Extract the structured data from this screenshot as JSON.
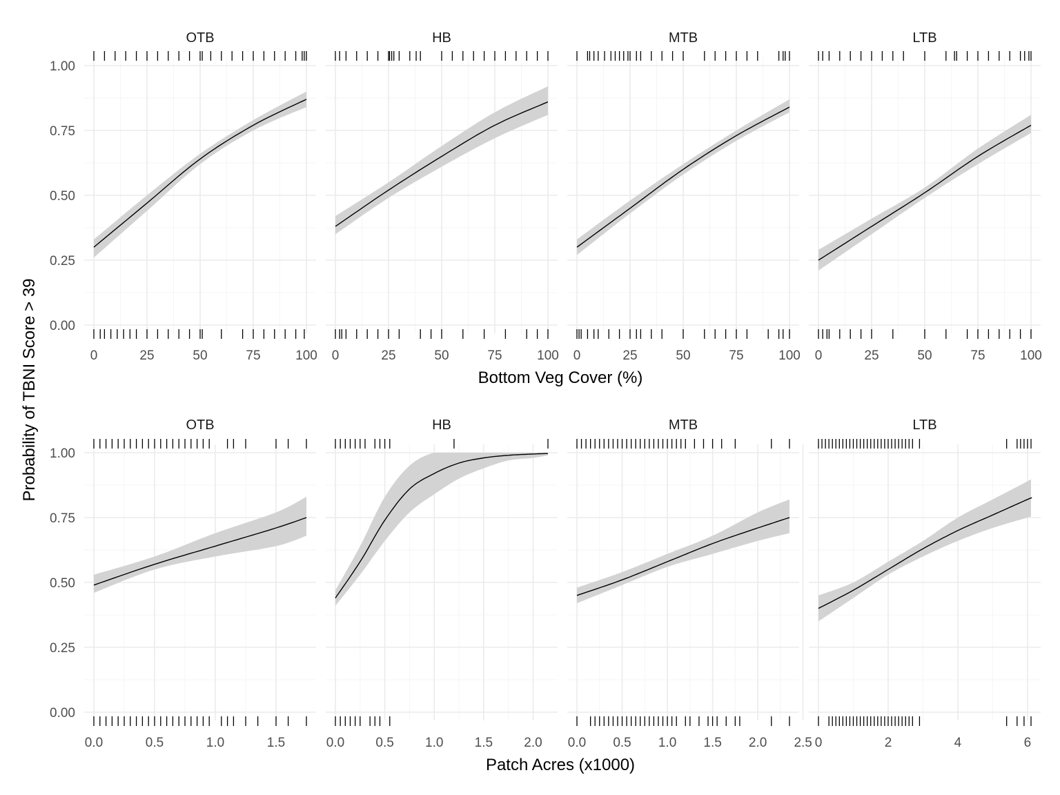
{
  "chart_data": {
    "type": "line",
    "ylabel": "Probability of TBNI Score > 39",
    "y_ticks": [
      "0.00",
      "0.25",
      "0.50",
      "0.75",
      "1.00"
    ],
    "ylim": [
      0,
      1
    ],
    "grid": true,
    "colors": {
      "line": "#000000",
      "ribbon": "#d3d3d3",
      "grid": "#ebebeb"
    },
    "rows": [
      {
        "xlabel": "Bottom Veg Cover (%)",
        "x_ticks": [
          "0",
          "25",
          "50",
          "75",
          "100"
        ],
        "x_tick_values": [
          0,
          25,
          50,
          75,
          100
        ],
        "xlim": [
          0,
          100
        ],
        "panels": [
          {
            "name": "OTB",
            "x": [
              0,
              25,
              50,
              75,
              100
            ],
            "y": [
              0.3,
              0.47,
              0.64,
              0.77,
              0.87
            ],
            "lower": [
              0.26,
              0.44,
              0.62,
              0.75,
              0.84
            ],
            "upper": [
              0.33,
              0.5,
              0.66,
              0.79,
              0.9
            ],
            "rug_top": [
              0,
              5,
              10,
              15,
              20,
              25,
              30,
              35,
              40,
              45,
              50,
              51,
              55,
              60,
              65,
              70,
              75,
              80,
              85,
              90,
              95,
              98,
              99,
              100
            ],
            "rug_bottom": [
              0,
              3,
              5,
              8,
              11,
              14,
              17,
              20,
              25,
              30,
              35,
              40,
              45,
              50,
              51,
              60,
              70,
              75,
              80,
              85,
              90,
              95,
              99
            ]
          },
          {
            "name": "HB",
            "x": [
              0,
              25,
              50,
              75,
              100
            ],
            "y": [
              0.38,
              0.52,
              0.65,
              0.77,
              0.86
            ],
            "lower": [
              0.35,
              0.49,
              0.61,
              0.72,
              0.81
            ],
            "upper": [
              0.42,
              0.55,
              0.69,
              0.82,
              0.92
            ],
            "rug_top": [
              0,
              2,
              5,
              10,
              15,
              20,
              25,
              25.5,
              26.5,
              27.5,
              30,
              35,
              38,
              40,
              50,
              55,
              60,
              65,
              70,
              75,
              80,
              85,
              90,
              95,
              100
            ],
            "rug_bottom": [
              0,
              2,
              3,
              5,
              10,
              15,
              20,
              25,
              30,
              40,
              45,
              50,
              60,
              70,
              80,
              90,
              95,
              100
            ]
          },
          {
            "name": "MTB",
            "x": [
              0,
              25,
              50,
              75,
              100
            ],
            "y": [
              0.3,
              0.45,
              0.6,
              0.73,
              0.84
            ],
            "lower": [
              0.27,
              0.43,
              0.58,
              0.71,
              0.82
            ],
            "upper": [
              0.33,
              0.48,
              0.62,
              0.75,
              0.87
            ],
            "rug_top": [
              0,
              5,
              6,
              8,
              10,
              13,
              16,
              18,
              20,
              22,
              24,
              25,
              28,
              30,
              35,
              40,
              45,
              50,
              60,
              65,
              70,
              75,
              80,
              85,
              95,
              97,
              98,
              100
            ],
            "rug_bottom": [
              0,
              1,
              2,
              5,
              8,
              10,
              15,
              20,
              25,
              28,
              30,
              35,
              40,
              50,
              60,
              65,
              70,
              75,
              80,
              90,
              95,
              97,
              100
            ]
          },
          {
            "name": "LTB",
            "x": [
              0,
              25,
              50,
              75,
              100
            ],
            "y": [
              0.25,
              0.38,
              0.51,
              0.65,
              0.77
            ],
            "lower": [
              0.21,
              0.35,
              0.49,
              0.62,
              0.74
            ],
            "upper": [
              0.29,
              0.41,
              0.53,
              0.68,
              0.81
            ],
            "rug_top": [
              0,
              2,
              5,
              10,
              15,
              20,
              25,
              30,
              35,
              40,
              50,
              60,
              64,
              65,
              70,
              75,
              80,
              85,
              90,
              95,
              97,
              99,
              100
            ],
            "rug_bottom": [
              0,
              2,
              4,
              5,
              10,
              15,
              20,
              25,
              35,
              50,
              60,
              70,
              75,
              80,
              85,
              90,
              95,
              100
            ]
          }
        ]
      },
      {
        "xlabel": "Patch Acres (x1000)",
        "panels": [
          {
            "name": "OTB",
            "x_ticks": [
              "0.0",
              "0.5",
              "1.0",
              "1.5"
            ],
            "x_tick_values": [
              0,
              0.5,
              1.0,
              1.5
            ],
            "xlim": [
              0,
              1.75
            ],
            "x": [
              0,
              0.5,
              1.0,
              1.5,
              1.75
            ],
            "y": [
              0.49,
              0.57,
              0.64,
              0.71,
              0.75
            ],
            "lower": [
              0.46,
              0.55,
              0.6,
              0.64,
              0.68
            ],
            "upper": [
              0.53,
              0.6,
              0.69,
              0.77,
              0.83
            ],
            "rug_top": [
              0,
              0.05,
              0.1,
              0.15,
              0.2,
              0.25,
              0.3,
              0.35,
              0.4,
              0.45,
              0.5,
              0.55,
              0.6,
              0.65,
              0.7,
              0.75,
              0.8,
              0.85,
              0.9,
              0.95,
              1.1,
              1.15,
              1.25,
              1.5,
              1.6,
              1.75
            ],
            "rug_bottom": [
              0,
              0.05,
              0.1,
              0.15,
              0.2,
              0.25,
              0.3,
              0.35,
              0.4,
              0.45,
              0.5,
              0.55,
              0.6,
              0.65,
              0.7,
              0.75,
              0.8,
              0.85,
              0.9,
              0.95,
              1.05,
              1.1,
              1.15,
              1.25,
              1.35,
              1.5,
              1.6,
              1.75
            ]
          },
          {
            "name": "HB",
            "x_ticks": [
              "0.0",
              "0.5",
              "1.0",
              "1.5",
              "2.0"
            ],
            "x_tick_values": [
              0,
              0.5,
              1.0,
              1.5,
              2.0
            ],
            "xlim": [
              0,
              2.15
            ],
            "x": [
              0,
              0.25,
              0.5,
              0.75,
              1.0,
              1.25,
              1.5,
              1.75,
              2.0,
              2.15
            ],
            "y": [
              0.44,
              0.58,
              0.74,
              0.86,
              0.92,
              0.96,
              0.98,
              0.99,
              0.995,
              0.997
            ],
            "lower": [
              0.41,
              0.53,
              0.66,
              0.77,
              0.84,
              0.9,
              0.94,
              0.97,
              0.98,
              0.99
            ],
            "upper": [
              0.47,
              0.64,
              0.83,
              0.95,
              1.0,
              1.0,
              1.0,
              1.0,
              1.0,
              1.0
            ],
            "rug_top": [
              0,
              0.05,
              0.1,
              0.15,
              0.2,
              0.25,
              0.3,
              0.4,
              0.45,
              0.5,
              0.55,
              1.2,
              2.15
            ],
            "rug_bottom": [
              0,
              0.05,
              0.1,
              0.15,
              0.2,
              0.25,
              0.35,
              0.4,
              0.45,
              0.55
            ]
          },
          {
            "name": "MTB",
            "x_ticks": [
              "0.0",
              "0.5",
              "1.0",
              "1.5",
              "2.0",
              "2.5"
            ],
            "x_tick_values": [
              0,
              0.5,
              1.0,
              1.5,
              2.0,
              2.5
            ],
            "xlim": [
              0,
              2.35
            ],
            "x": [
              0,
              0.5,
              1.0,
              1.5,
              2.0,
              2.35
            ],
            "y": [
              0.45,
              0.51,
              0.58,
              0.65,
              0.71,
              0.75
            ],
            "lower": [
              0.42,
              0.49,
              0.56,
              0.61,
              0.66,
              0.69
            ],
            "upper": [
              0.48,
              0.54,
              0.61,
              0.68,
              0.77,
              0.82
            ],
            "rug_top": [
              0,
              0.05,
              0.1,
              0.15,
              0.2,
              0.25,
              0.3,
              0.35,
              0.4,
              0.45,
              0.5,
              0.55,
              0.6,
              0.65,
              0.7,
              0.75,
              0.8,
              0.85,
              0.9,
              0.95,
              1.0,
              1.05,
              1.1,
              1.15,
              1.2,
              1.3,
              1.4,
              1.5,
              1.6,
              1.75,
              2.15,
              2.35
            ],
            "rug_bottom": [
              0,
              0.15,
              0.2,
              0.25,
              0.3,
              0.35,
              0.4,
              0.45,
              0.5,
              0.55,
              0.6,
              0.65,
              0.7,
              0.75,
              0.8,
              0.85,
              0.9,
              0.95,
              1.0,
              1.05,
              1.1,
              1.2,
              1.25,
              1.35,
              1.45,
              1.5,
              1.55,
              1.65,
              1.75,
              1.8,
              2.15,
              2.35
            ]
          },
          {
            "name": "LTB",
            "x_ticks": [
              "0",
              "2",
              "4",
              "6"
            ],
            "x_tick_values": [
              0,
              2,
              4,
              6
            ],
            "xlim": [
              0,
              6.1
            ],
            "x": [
              0,
              1,
              2,
              3,
              4,
              5,
              6,
              6.1
            ],
            "y": [
              0.4,
              0.47,
              0.55,
              0.63,
              0.7,
              0.76,
              0.82,
              0.825
            ],
            "lower": [
              0.35,
              0.44,
              0.53,
              0.6,
              0.66,
              0.71,
              0.75,
              0.755
            ],
            "upper": [
              0.45,
              0.5,
              0.58,
              0.66,
              0.75,
              0.82,
              0.89,
              0.9
            ],
            "rug_top": [
              0,
              0.1,
              0.2,
              0.3,
              0.4,
              0.5,
              0.6,
              0.7,
              0.8,
              0.9,
              1.0,
              1.1,
              1.2,
              1.3,
              1.4,
              1.5,
              1.6,
              1.7,
              1.8,
              1.9,
              2.0,
              2.1,
              2.2,
              2.3,
              2.4,
              2.5,
              2.6,
              2.7,
              2.9,
              5.4,
              5.7,
              5.8,
              5.9,
              6.0,
              6.1
            ],
            "rug_bottom": [
              0,
              0.3,
              0.4,
              0.5,
              0.6,
              0.7,
              0.8,
              0.9,
              1.0,
              1.1,
              1.2,
              1.3,
              1.4,
              1.5,
              1.6,
              1.7,
              1.8,
              1.9,
              2.0,
              2.1,
              2.2,
              2.3,
              2.4,
              2.5,
              2.6,
              2.7,
              2.9,
              5.4,
              5.7,
              5.9,
              6.1
            ]
          }
        ]
      }
    ]
  }
}
